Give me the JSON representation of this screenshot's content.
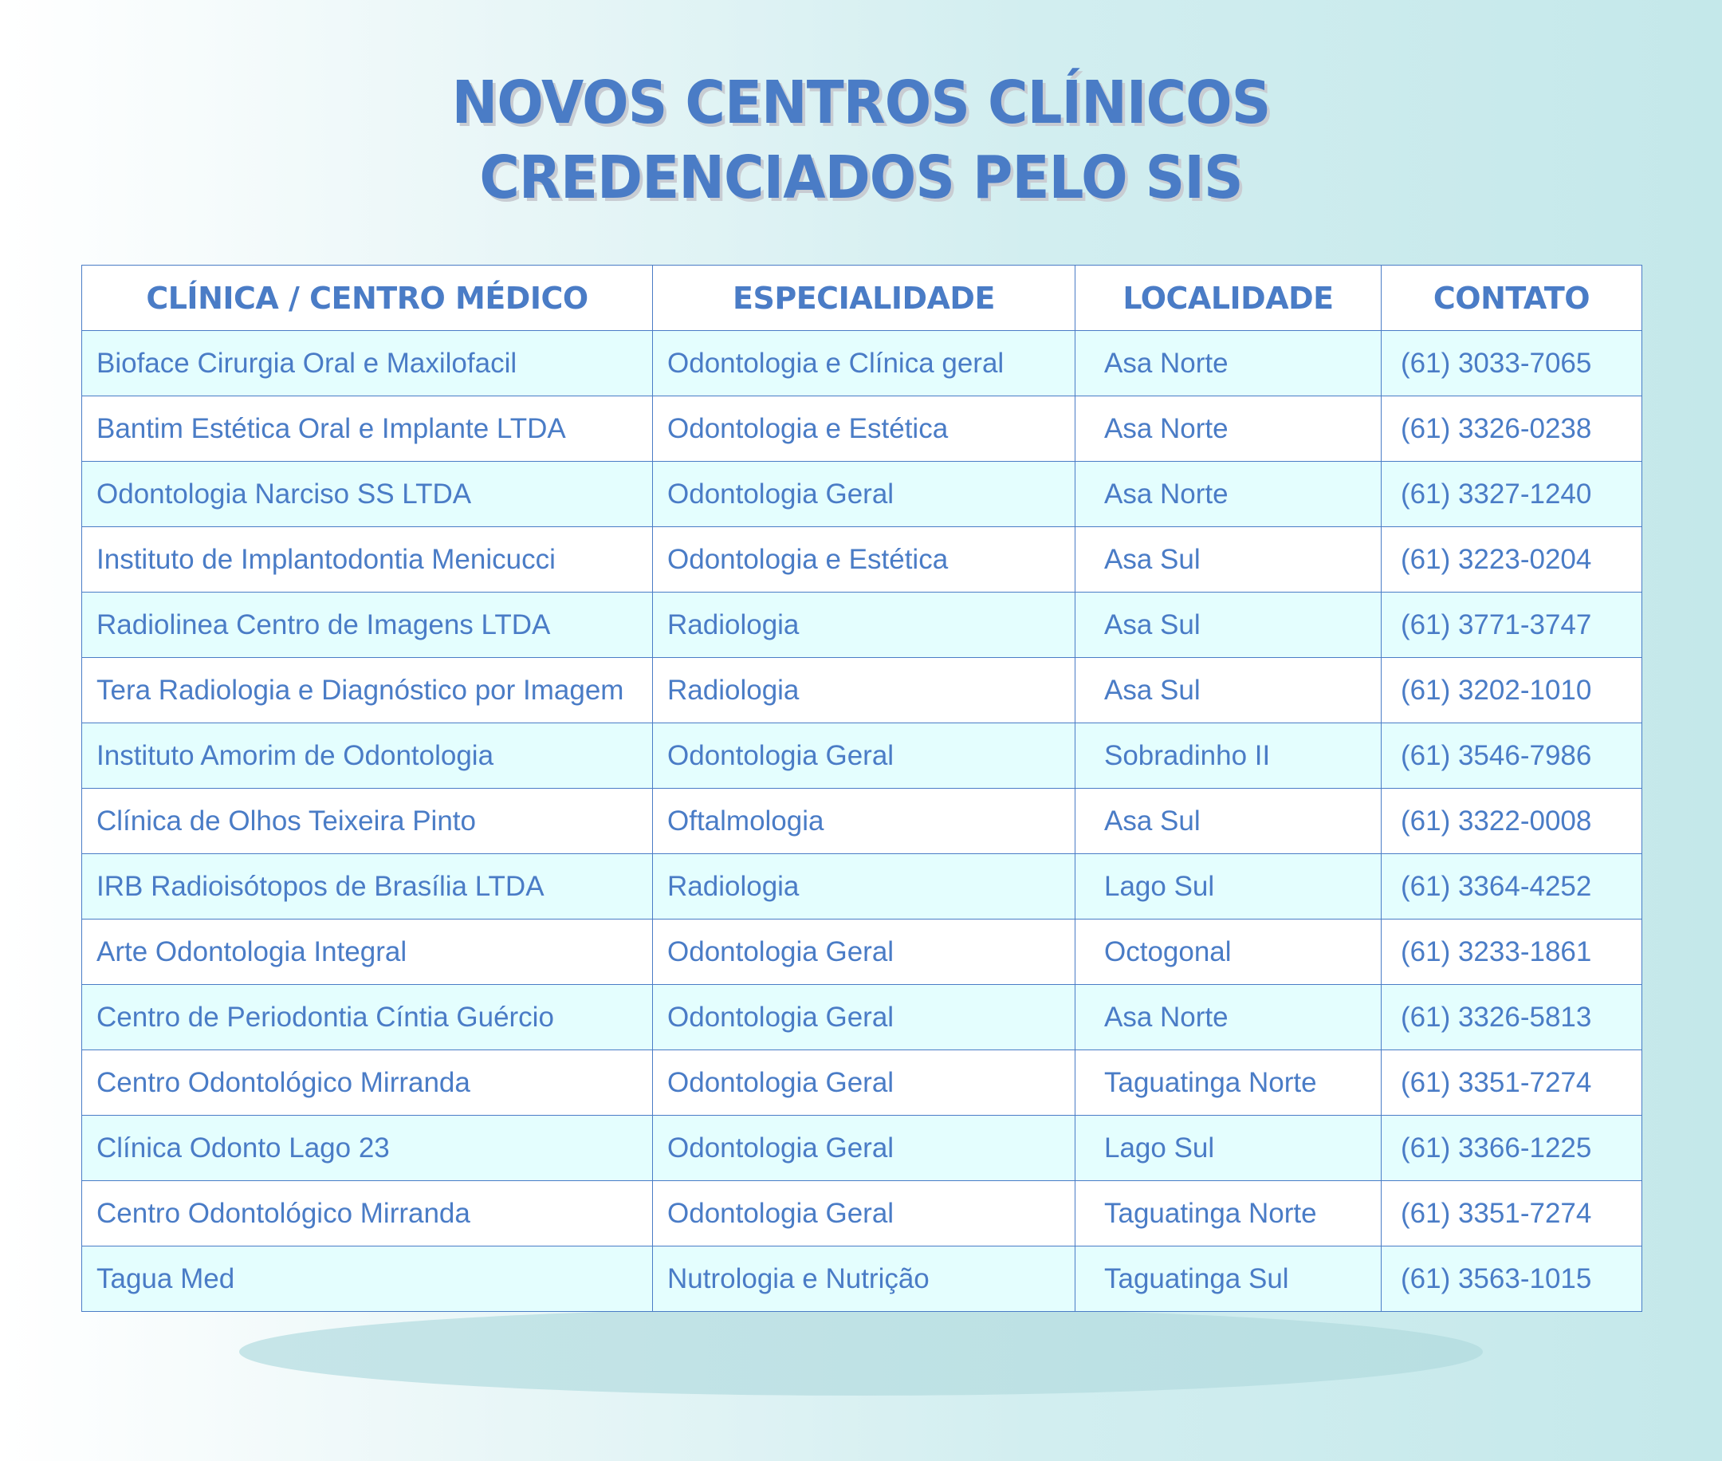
{
  "title": {
    "line1": "NOVOS CENTROS CLÍNICOS",
    "line2": "CREDENCIADOS PELO SIS"
  },
  "colors": {
    "text": "#4a7cc6",
    "row_alt": "#e4fefe",
    "background": "#c4e8ea"
  },
  "table": {
    "headers": [
      "CLÍNICA / CENTRO MÉDICO",
      "ESPECIALIDADE",
      "LOCALIDADE",
      "CONTATO"
    ],
    "rows": [
      [
        "Bioface Cirurgia Oral e Maxilofacil",
        "Odontologia e Clínica geral",
        "Asa Norte",
        "(61) 3033-7065"
      ],
      [
        "Bantim Estética Oral e Implante LTDA",
        "Odontologia e Estética",
        "Asa Norte",
        "(61) 3326-0238"
      ],
      [
        "Odontologia Narciso SS LTDA",
        "Odontologia Geral",
        "Asa Norte",
        "(61) 3327-1240"
      ],
      [
        "Instituto de Implantodontia Menicucci",
        "Odontologia e Estética",
        "Asa Sul",
        "(61) 3223-0204"
      ],
      [
        "Radiolinea Centro de Imagens LTDA",
        "Radiologia",
        "Asa Sul",
        "(61) 3771-3747"
      ],
      [
        "Tera Radiologia e Diagnóstico por Imagem",
        "Radiologia",
        "Asa Sul",
        "(61) 3202-1010"
      ],
      [
        "Instituto Amorim de Odontologia",
        "Odontologia Geral",
        "Sobradinho II",
        "(61) 3546-7986"
      ],
      [
        "Clínica de Olhos Teixeira Pinto",
        "Oftalmologia",
        "Asa Sul",
        "(61) 3322-0008"
      ],
      [
        "IRB Radioisótopos de Brasília LTDA",
        "Radiologia",
        "Lago Sul",
        "(61) 3364-4252"
      ],
      [
        "Arte Odontologia Integral",
        "Odontologia Geral",
        "Octogonal",
        "(61) 3233-1861"
      ],
      [
        "Centro de Periodontia Cíntia Guércio",
        "Odontologia Geral",
        "Asa Norte",
        "(61) 3326-5813"
      ],
      [
        "Centro Odontológico Mirranda",
        "Odontologia Geral",
        "Taguatinga Norte",
        "(61) 3351-7274"
      ],
      [
        "Clínica Odonto Lago 23",
        "Odontologia Geral",
        "Lago Sul",
        "(61) 3366-1225"
      ],
      [
        "Centro Odontológico Mirranda",
        "Odontologia Geral",
        "Taguatinga Norte",
        "(61) 3351-7274"
      ],
      [
        "Tagua Med",
        "Nutrologia e Nutrição",
        "Taguatinga Sul",
        "(61) 3563-1015"
      ]
    ]
  }
}
